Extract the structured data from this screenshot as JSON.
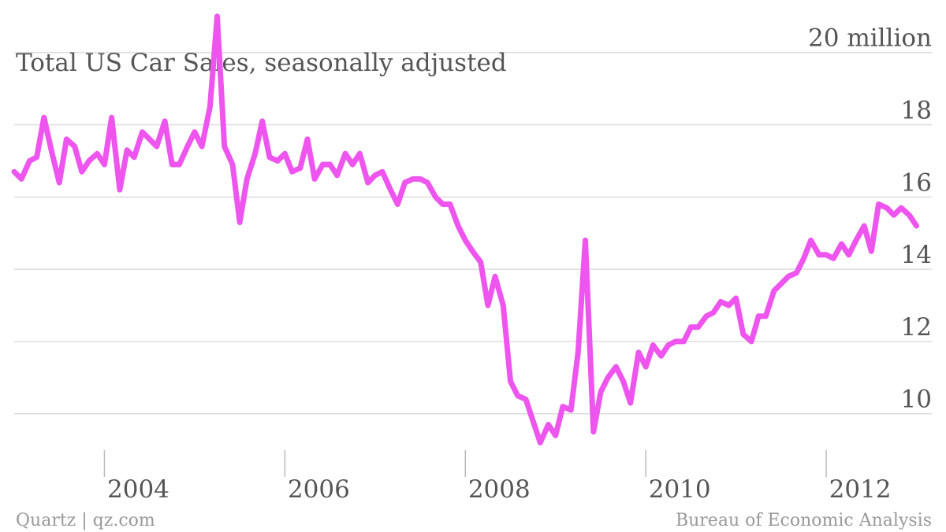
{
  "chart_data": {
    "type": "line",
    "title": "Total US Car Sales, seasonally adjusted",
    "unit_label": "20 million",
    "xlabel": "",
    "ylabel": "",
    "xlim": [
      2003.0,
      2013.17
    ],
    "ylim": [
      8.6,
      20.8
    ],
    "x_ticks": [
      2004,
      2006,
      2008,
      2010,
      2012
    ],
    "x_tick_labels": [
      "2004",
      "2006",
      "2008",
      "2010",
      "2012"
    ],
    "y_ticks": [
      10,
      12,
      14,
      16,
      18,
      20
    ],
    "y_tick_labels": [
      "10",
      "12",
      "14",
      "16",
      "18",
      "20 million"
    ],
    "grid": true,
    "series": [
      {
        "color": "#ee55ee",
        "points": [
          [
            2003.0,
            16.7
          ],
          [
            2003.08,
            16.5
          ],
          [
            2003.17,
            17.0
          ],
          [
            2003.25,
            17.1
          ],
          [
            2003.33,
            18.2
          ],
          [
            2003.42,
            17.2
          ],
          [
            2003.5,
            16.4
          ],
          [
            2003.58,
            17.6
          ],
          [
            2003.67,
            17.4
          ],
          [
            2003.75,
            16.7
          ],
          [
            2003.83,
            17.0
          ],
          [
            2003.92,
            17.2
          ],
          [
            2004.0,
            16.9
          ],
          [
            2004.08,
            18.2
          ],
          [
            2004.17,
            16.2
          ],
          [
            2004.25,
            17.3
          ],
          [
            2004.33,
            17.1
          ],
          [
            2004.42,
            17.8
          ],
          [
            2004.5,
            17.6
          ],
          [
            2004.58,
            17.4
          ],
          [
            2004.67,
            18.1
          ],
          [
            2004.75,
            16.9
          ],
          [
            2004.83,
            16.9
          ],
          [
            2004.92,
            17.4
          ],
          [
            2005.0,
            17.8
          ],
          [
            2005.08,
            17.4
          ],
          [
            2005.17,
            18.5
          ],
          [
            2005.25,
            21.0
          ],
          [
            2005.33,
            17.4
          ],
          [
            2005.42,
            16.9
          ],
          [
            2005.5,
            15.3
          ],
          [
            2005.58,
            16.5
          ],
          [
            2005.67,
            17.2
          ],
          [
            2005.75,
            18.1
          ],
          [
            2005.83,
            17.1
          ],
          [
            2005.92,
            17.0
          ],
          [
            2006.0,
            17.2
          ],
          [
            2006.08,
            16.7
          ],
          [
            2006.17,
            16.8
          ],
          [
            2006.25,
            17.6
          ],
          [
            2006.33,
            16.5
          ],
          [
            2006.42,
            16.9
          ],
          [
            2006.5,
            16.9
          ],
          [
            2006.58,
            16.6
          ],
          [
            2006.67,
            17.2
          ],
          [
            2006.75,
            16.9
          ],
          [
            2006.83,
            17.2
          ],
          [
            2006.92,
            16.4
          ],
          [
            2007.0,
            16.6
          ],
          [
            2007.08,
            16.7
          ],
          [
            2007.17,
            16.2
          ],
          [
            2007.25,
            15.8
          ],
          [
            2007.33,
            16.4
          ],
          [
            2007.42,
            16.5
          ],
          [
            2007.5,
            16.5
          ],
          [
            2007.58,
            16.4
          ],
          [
            2007.67,
            16.0
          ],
          [
            2007.75,
            15.8
          ],
          [
            2007.83,
            15.8
          ],
          [
            2007.92,
            15.2
          ],
          [
            2008.0,
            14.8
          ],
          [
            2008.08,
            14.5
          ],
          [
            2008.17,
            14.2
          ],
          [
            2008.25,
            13.0
          ],
          [
            2008.33,
            13.8
          ],
          [
            2008.42,
            13.0
          ],
          [
            2008.5,
            10.9
          ],
          [
            2008.58,
            10.5
          ],
          [
            2008.67,
            10.4
          ],
          [
            2008.75,
            9.8
          ],
          [
            2008.83,
            9.2
          ],
          [
            2008.92,
            9.7
          ],
          [
            2009.0,
            9.4
          ],
          [
            2009.08,
            10.2
          ],
          [
            2009.17,
            10.1
          ],
          [
            2009.25,
            11.7
          ],
          [
            2009.33,
            14.8
          ],
          [
            2009.42,
            9.5
          ],
          [
            2009.5,
            10.6
          ],
          [
            2009.58,
            11.0
          ],
          [
            2009.67,
            11.3
          ],
          [
            2009.75,
            10.9
          ],
          [
            2009.83,
            10.3
          ],
          [
            2009.92,
            11.7
          ],
          [
            2010.0,
            11.3
          ],
          [
            2010.08,
            11.9
          ],
          [
            2010.17,
            11.6
          ],
          [
            2010.25,
            11.9
          ],
          [
            2010.33,
            12.0
          ],
          [
            2010.42,
            12.0
          ],
          [
            2010.5,
            12.4
          ],
          [
            2010.58,
            12.4
          ],
          [
            2010.67,
            12.7
          ],
          [
            2010.75,
            12.8
          ],
          [
            2010.83,
            13.1
          ],
          [
            2010.92,
            13.0
          ],
          [
            2011.0,
            13.2
          ],
          [
            2011.08,
            12.2
          ],
          [
            2011.17,
            12.0
          ],
          [
            2011.25,
            12.7
          ],
          [
            2011.33,
            12.7
          ],
          [
            2011.42,
            13.4
          ],
          [
            2011.5,
            13.6
          ],
          [
            2011.58,
            13.8
          ],
          [
            2011.67,
            13.9
          ],
          [
            2011.75,
            14.3
          ],
          [
            2011.83,
            14.8
          ],
          [
            2011.92,
            14.4
          ],
          [
            2012.0,
            14.4
          ],
          [
            2012.08,
            14.3
          ],
          [
            2012.17,
            14.7
          ],
          [
            2012.25,
            14.4
          ],
          [
            2012.33,
            14.8
          ],
          [
            2012.42,
            15.2
          ],
          [
            2012.5,
            14.5
          ],
          [
            2012.58,
            15.8
          ],
          [
            2012.67,
            15.7
          ],
          [
            2012.75,
            15.5
          ],
          [
            2012.83,
            15.7
          ],
          [
            2012.92,
            15.5
          ],
          [
            2013.0,
            15.2
          ]
        ]
      }
    ]
  },
  "footer": {
    "left": "Quartz | qz.com",
    "right": "Bureau of Economic Analysis"
  }
}
